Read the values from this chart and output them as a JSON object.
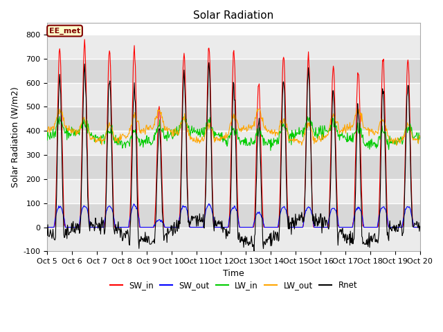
{
  "title": "Solar Radiation",
  "ylabel": "Solar Radiation (W/m2)",
  "xlabel": "Time",
  "ylim": [
    -100,
    850
  ],
  "n_days": 15,
  "tick_labels": [
    "Oct 5",
    "Oct 6",
    "Oct 7",
    "Oct 8",
    "Oct 9",
    "Oct 10",
    "Oct 11",
    "Oct 12",
    "Oct 13",
    "Oct 14",
    "Oct 15",
    "Oct 16",
    "Oct 17",
    "Oct 18",
    "Oct 19",
    "Oct 20"
  ],
  "colors": {
    "SW_in": "#ff0000",
    "SW_out": "#0000ff",
    "LW_in": "#00cc00",
    "LW_out": "#ffa500",
    "Rnet": "#000000"
  },
  "annotation_text": "EE_met",
  "annotation_color": "#800000",
  "annotation_bg": "#ffffcc",
  "plot_bg": "#f0f0f0",
  "band_light": "#e8e8e8",
  "band_dark": "#d0d0d0",
  "grid_color": "#ffffff",
  "title_fontsize": 11,
  "label_fontsize": 9,
  "tick_fontsize": 8,
  "figsize": [
    6.4,
    4.8
  ],
  "dpi": 100,
  "sw_in_peaks": [
    745,
    765,
    738,
    742,
    505,
    720,
    750,
    730,
    590,
    715,
    710,
    670,
    660,
    700,
    695
  ],
  "sw_out_peaks": [
    85,
    90,
    88,
    92,
    30,
    90,
    95,
    85,
    60,
    85,
    85,
    80,
    82,
    85,
    85
  ],
  "lw_in_base": 370,
  "lw_out_base": 385,
  "pts_per_day": 48
}
